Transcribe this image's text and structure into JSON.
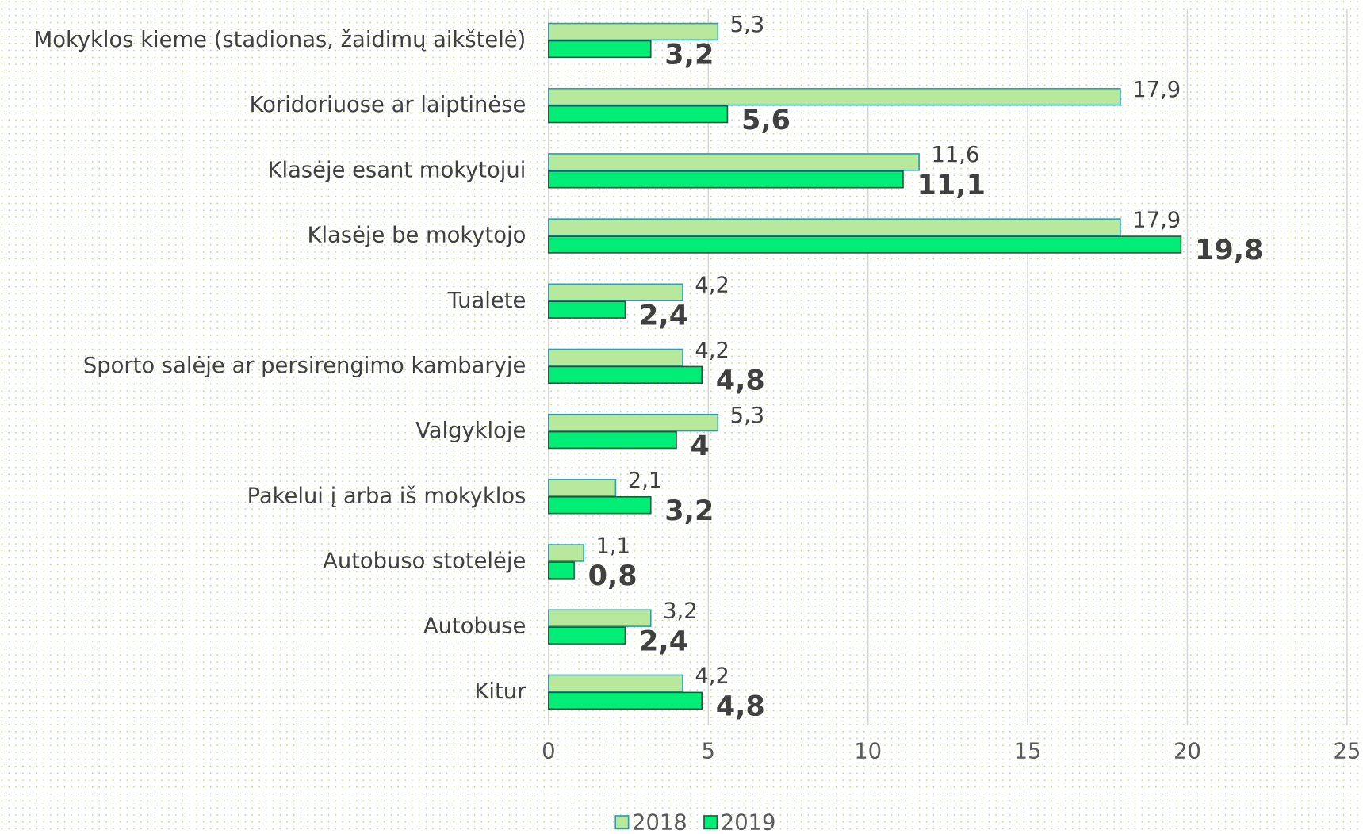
{
  "chart_data": {
    "type": "bar",
    "orientation": "horizontal",
    "categories": [
      "Mokyklos kieme (stadionas, žaidimų aikštelė)",
      "Koridoriuose ar laiptinėse",
      "Klasėje esant mokytojui",
      "Klasėje be mokytojo",
      "Tualete",
      "Sporto salėje ar persirengimo kambaryje",
      "Valgykloje",
      "Pakelui į arba iš mokyklos",
      "Autobuso stotelėje",
      "Autobuse",
      "Kitur"
    ],
    "series": [
      {
        "name": "2018",
        "color": "#b8e89c",
        "border": "#2a9fb0",
        "values": [
          5.3,
          17.9,
          11.6,
          17.9,
          4.2,
          4.2,
          5.3,
          2.1,
          1.1,
          3.2,
          4.2
        ],
        "value_labels": [
          "5,3",
          "17,9",
          "11,6",
          "17,9",
          "4,2",
          "4,2",
          "5,3",
          "2,1",
          "1,1",
          "3,2",
          "4,2"
        ]
      },
      {
        "name": "2019",
        "color": "#00ee76",
        "border": "#1d5c3a",
        "values": [
          3.2,
          5.6,
          11.1,
          19.8,
          2.4,
          4.8,
          4,
          3.2,
          0.8,
          2.4,
          4.8
        ],
        "value_labels": [
          "3,2",
          "5,6",
          "11,1",
          "19,8",
          "2,4",
          "4,8",
          "4",
          "3,2",
          "0,8",
          "2,4",
          "4,8"
        ]
      }
    ],
    "xlim": [
      0,
      25
    ],
    "xticks": [
      0,
      5,
      10,
      15,
      20,
      25
    ],
    "grid": true,
    "legend": "bottom"
  }
}
